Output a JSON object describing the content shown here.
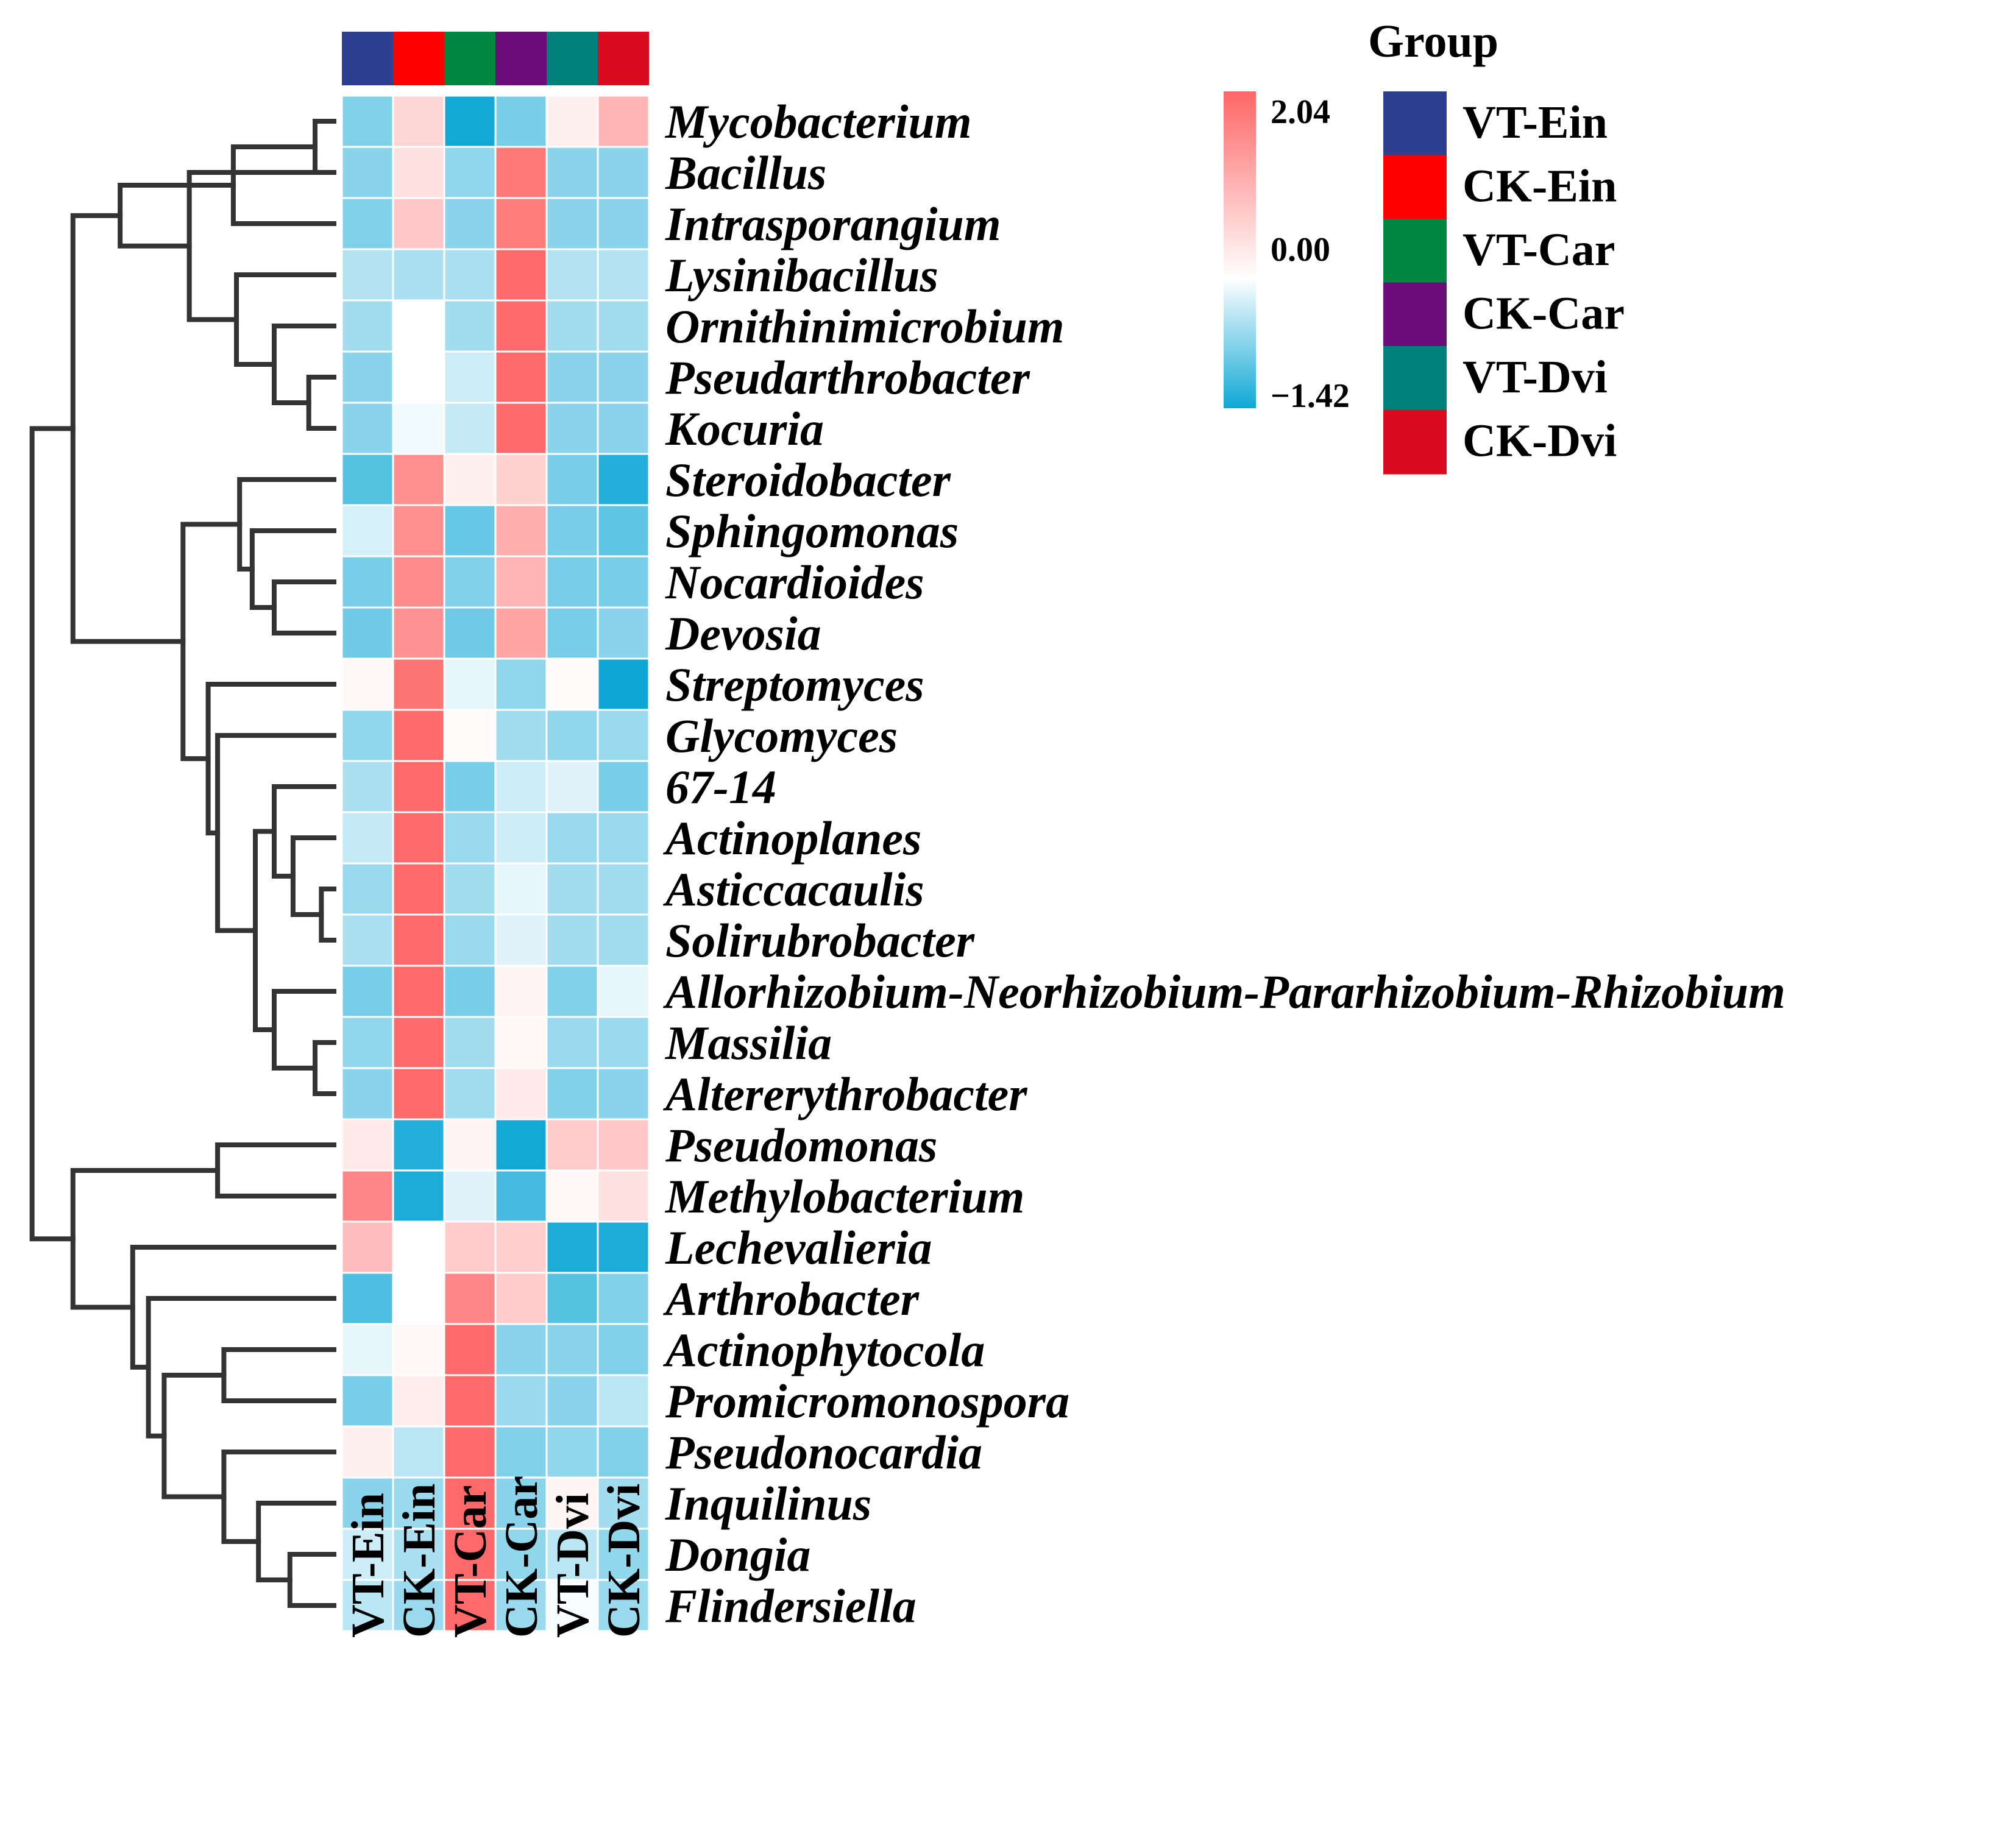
{
  "chart_data": {
    "type": "heatmap",
    "title": "",
    "columns": [
      "VT-Ein",
      "CK-Ein",
      "VT-Car",
      "CK-Car",
      "VT-Dvi",
      "CK-Dvi"
    ],
    "column_colors": [
      "#2E3F91",
      "#FF0000",
      "#00873F",
      "#6B0E7A",
      "#00807A",
      "#DA0A1F"
    ],
    "rows": [
      "Mycobacterium",
      "Bacillus",
      "Intrasporangium",
      "Lysinibacillus",
      "Ornithinimicrobium",
      "Pseudarthrobacter",
      "Kocuria",
      "Steroidobacter",
      "Sphingomonas",
      "Nocardioides",
      "Devosia",
      "Streptomyces",
      "Glycomyces",
      "67-14",
      "Actinoplanes",
      "Asticcacaulis",
      "Solirubrobacter",
      "Allorhizobium-Neorhizobium-Pararhizobium-Rhizobium",
      "Massilia",
      "Altererythrobacter",
      "Pseudomonas",
      "Methylobacterium",
      "Lechevalieria",
      "Arthrobacter",
      "Actinophytocola",
      "Promicromonospora",
      "Pseudonocardia",
      "Inquilinus",
      "Dongia",
      "Flindersiella"
    ],
    "values": [
      [
        -0.75,
        0.55,
        -1.4,
        -0.8,
        0.2,
        1.0
      ],
      [
        -0.7,
        0.4,
        -0.65,
        1.8,
        -0.7,
        -0.7
      ],
      [
        -0.75,
        0.75,
        -0.7,
        1.75,
        -0.7,
        -0.7
      ],
      [
        -0.45,
        -0.5,
        -0.5,
        2.0,
        -0.45,
        -0.45
      ],
      [
        -0.55,
        0.02,
        -0.55,
        2.0,
        -0.55,
        -0.55
      ],
      [
        -0.7,
        0.02,
        -0.3,
        2.0,
        -0.7,
        -0.7
      ],
      [
        -0.7,
        -0.08,
        -0.35,
        2.0,
        -0.7,
        -0.7
      ],
      [
        -1.0,
        1.5,
        0.2,
        0.6,
        -0.8,
        -1.3
      ],
      [
        -0.25,
        1.5,
        -0.9,
        1.1,
        -0.8,
        -0.95
      ],
      [
        -0.8,
        1.55,
        -0.75,
        1.0,
        -0.8,
        -0.8
      ],
      [
        -0.85,
        1.45,
        -0.85,
        1.2,
        -0.8,
        -0.7
      ],
      [
        0.1,
        1.85,
        -0.15,
        -0.65,
        0.05,
        -1.42
      ],
      [
        -0.65,
        2.0,
        0.05,
        -0.55,
        -0.65,
        -0.6
      ],
      [
        -0.5,
        2.0,
        -0.8,
        -0.3,
        -0.2,
        -0.8
      ],
      [
        -0.35,
        2.0,
        -0.6,
        -0.3,
        -0.6,
        -0.6
      ],
      [
        -0.6,
        2.0,
        -0.55,
        -0.15,
        -0.55,
        -0.55
      ],
      [
        -0.5,
        2.0,
        -0.6,
        -0.2,
        -0.55,
        -0.55
      ],
      [
        -0.8,
        2.0,
        -0.8,
        0.15,
        -0.75,
        -0.15
      ],
      [
        -0.65,
        2.0,
        -0.55,
        0.1,
        -0.6,
        -0.6
      ],
      [
        -0.7,
        2.0,
        -0.55,
        0.3,
        -0.75,
        -0.7
      ],
      [
        0.3,
        -1.3,
        0.15,
        -1.4,
        0.7,
        0.75
      ],
      [
        1.6,
        -1.35,
        -0.2,
        -1.1,
        0.1,
        0.4
      ],
      [
        0.9,
        0.02,
        0.7,
        0.65,
        -1.35,
        -1.35
      ],
      [
        -1.05,
        0.02,
        1.6,
        0.7,
        -1.0,
        -0.75
      ],
      [
        -0.15,
        0.1,
        2.0,
        -0.7,
        -0.7,
        -0.75
      ],
      [
        -0.8,
        0.25,
        2.0,
        -0.6,
        -0.7,
        -0.4
      ],
      [
        0.2,
        -0.4,
        2.0,
        -0.75,
        -0.65,
        -0.75
      ],
      [
        -0.7,
        -0.6,
        2.0,
        -0.7,
        0.15,
        -0.55
      ],
      [
        -0.3,
        -0.5,
        2.0,
        -0.65,
        -0.4,
        -0.65
      ],
      [
        -0.4,
        -0.6,
        2.0,
        -0.6,
        -0.05,
        -0.6
      ]
    ],
    "color_scale": {
      "min": -1.42,
      "mid": 0.0,
      "max": 2.04,
      "min_color": "#0FA8D6",
      "mid_color": "#FFFFFF",
      "max_color": "#FF6666",
      "tick_labels": [
        "2.04",
        "0.00",
        "−1.42"
      ]
    },
    "legend": {
      "title": "Group",
      "position": "top-right"
    },
    "dendrogram": {
      "order": [
        "Mycobacterium",
        "Bacillus",
        "Intrasporangium",
        "Lysinibacillus",
        "Ornithinimicrobium",
        "Pseudarthrobacter",
        "Kocuria",
        "Steroidobacter",
        "Sphingomonas",
        "Nocardioides",
        "Devosia",
        "Streptomyces",
        "Glycomyces",
        "67-14",
        "Actinoplanes",
        "Asticcacaulis",
        "Solirubrobacter",
        "Allorhizobium-Neorhizobium-Pararhizobium-Rhizobium",
        "Massilia",
        "Altererythrobacter",
        "Pseudomonas",
        "Methylobacterium",
        "Lechevalieria",
        "Arthrobacter",
        "Actinophytocola",
        "Promicromonospora",
        "Pseudonocardia",
        "Inquilinus",
        "Dongia",
        "Flindersiella"
      ],
      "merges": [
        [
          0,
          1,
          0.06
        ],
        [
          0,
          2,
          0.32
        ],
        [
          5,
          6,
          0.08
        ],
        [
          4,
          5,
          0.19
        ],
        [
          3,
          4,
          0.31
        ],
        [
          1,
          3,
          0.46
        ],
        [
          0,
          1,
          0.68
        ],
        [
          9,
          10,
          0.19
        ],
        [
          8,
          9,
          0.26
        ],
        [
          7,
          8,
          0.3
        ],
        [
          18,
          19,
          0.06
        ],
        [
          17,
          18,
          0.19
        ],
        [
          15,
          16,
          0.04
        ],
        [
          14,
          15,
          0.13
        ],
        [
          13,
          14,
          0.19
        ],
        [
          13,
          17,
          0.25
        ],
        [
          12,
          13,
          0.37
        ],
        [
          11,
          12,
          0.4
        ],
        [
          7,
          11,
          0.48
        ],
        [
          0,
          7,
          0.83
        ],
        [
          20,
          21,
          0.37
        ],
        [
          28,
          29,
          0.14
        ],
        [
          27,
          28,
          0.24
        ],
        [
          26,
          27,
          0.35
        ],
        [
          24,
          25,
          0.35
        ],
        [
          24,
          26,
          0.54
        ],
        [
          23,
          24,
          0.59
        ],
        [
          22,
          23,
          0.64
        ],
        [
          20,
          22,
          0.83
        ],
        [
          0,
          20,
          0.96
        ]
      ]
    }
  }
}
